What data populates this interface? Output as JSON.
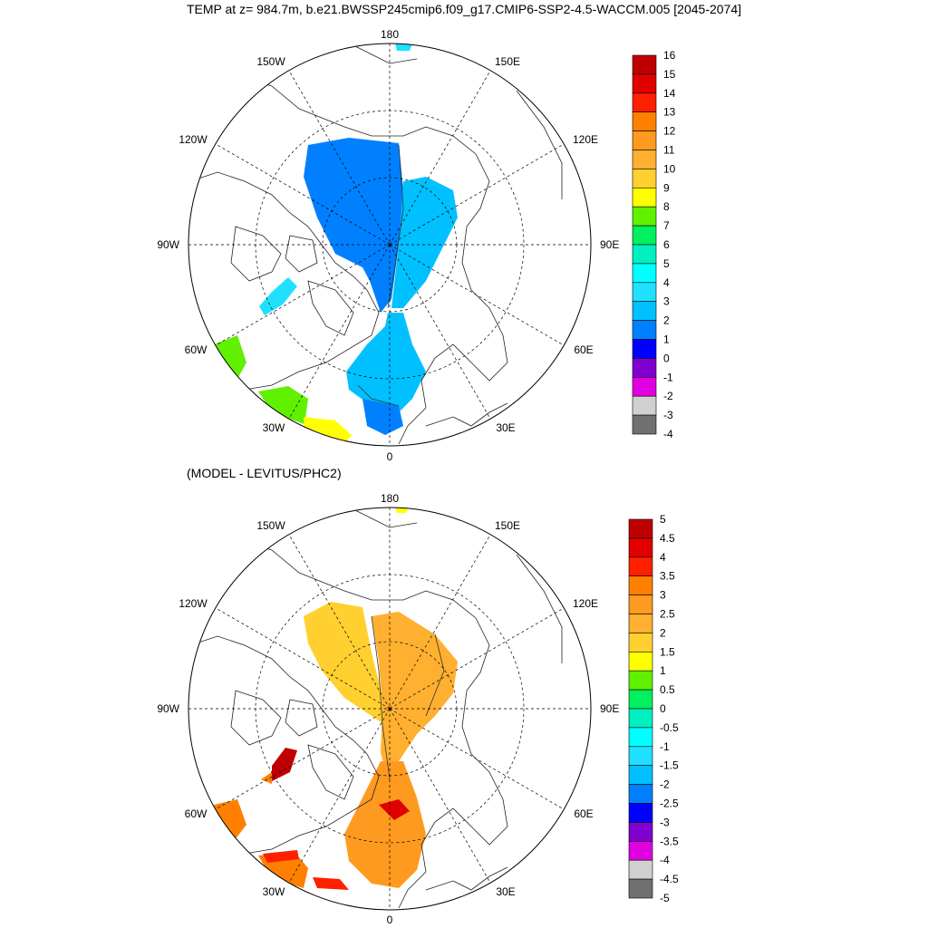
{
  "title": "TEMP at z= 984.7m, b.e21.BWSSP245cmip6.f09_g17.CMIP6-SSP2-4.5-WACCM.005 [2045-2074]",
  "diff_title": "(MODEL - LEVITUS/PHC2)",
  "lon_labels": {
    "top": "180",
    "bottom": "0",
    "left": "90W",
    "right": "90E",
    "ul1": "150W",
    "ul2": "120W",
    "ur1": "150E",
    "ur2": "120E",
    "ll1": "60W",
    "ll2": "30W",
    "lr1": "60E",
    "lr2": "30E"
  },
  "colorbar_top": {
    "labels": [
      "16",
      "15",
      "14",
      "13",
      "12",
      "11",
      "10",
      "9",
      "8",
      "7",
      "6",
      "5",
      "4",
      "3",
      "2",
      "1",
      "0",
      "-1",
      "-2",
      "-3",
      "-4"
    ],
    "colors": [
      "#c00000",
      "#e00000",
      "#ff2000",
      "#ff8000",
      "#ff9a20",
      "#ffb030",
      "#ffd030",
      "#ffff00",
      "#60f000",
      "#00f060",
      "#00f0c0",
      "#00ffff",
      "#20e0ff",
      "#00c0ff",
      "#0080ff",
      "#0000ff",
      "#8000d0",
      "#e000e0",
      "#d0d0d0",
      "#707070"
    ]
  },
  "colorbar_bottom": {
    "labels": [
      "5",
      "4.5",
      "4",
      "3.5",
      "3",
      "2.5",
      "2",
      "1.5",
      "1",
      "0.5",
      "0",
      "-0.5",
      "-1",
      "-1.5",
      "-2",
      "-2.5",
      "-3",
      "-3.5",
      "-4",
      "-4.5",
      "-5"
    ],
    "colors": [
      "#c00000",
      "#e00000",
      "#ff2000",
      "#ff8000",
      "#ff9a20",
      "#ffb030",
      "#ffd030",
      "#ffff00",
      "#60f000",
      "#00f060",
      "#00f0c0",
      "#00ffff",
      "#20e0ff",
      "#00c0ff",
      "#0080ff",
      "#0000ff",
      "#8000d0",
      "#e000e0",
      "#d0d0d0",
      "#707070"
    ]
  }
}
